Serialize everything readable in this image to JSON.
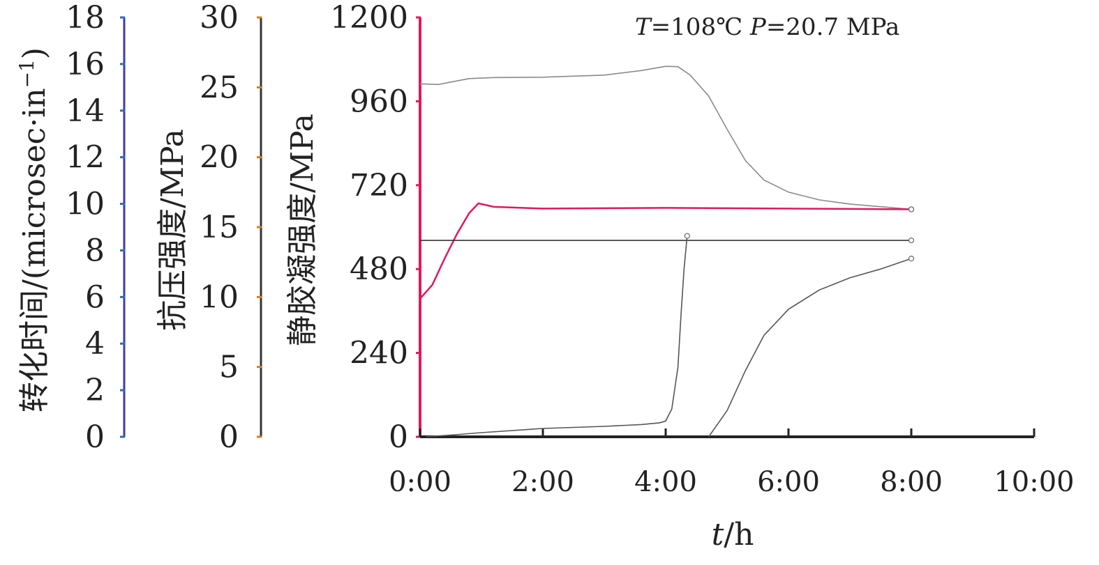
{
  "chart_data": {
    "type": "line",
    "annotation": "T=108℃ P=20.7 MPa",
    "annotation_parts": {
      "t_var": "T",
      "t_value": "=108℃ ",
      "p_var": "P",
      "p_value": "=20.7 MPa"
    },
    "xlabel": "t/h",
    "xlabel_parts": {
      "var": "t",
      "unit": "/h"
    },
    "x_unit": "hours",
    "x_range": [
      0,
      10
    ],
    "x_ticks": [
      "0:00",
      "2:00",
      "4:00",
      "6:00",
      "8:00",
      "10:00"
    ],
    "y_axes": [
      {
        "id": "transit_time",
        "label": "转化时间/(microsec·in⁻¹)",
        "label_parts": {
          "main": "转化时间/(microsec·in",
          "sup": "−1",
          "close": ")"
        },
        "range": [
          0,
          18
        ],
        "ticks": [
          "0",
          "2",
          "4",
          "6",
          "8",
          "10",
          "12",
          "14",
          "16",
          "18"
        ],
        "color": "#3b3fa8",
        "tick_color": "#2a6db5"
      },
      {
        "id": "compressive_strength",
        "label": "抗压强度/MPa",
        "range": [
          0,
          30
        ],
        "ticks": [
          "0",
          "5",
          "10",
          "15",
          "20",
          "25",
          "30"
        ],
        "color": "#333333",
        "tick_color": "#e07b18"
      },
      {
        "id": "sgs",
        "label": "静胶凝强度/MPa",
        "range": [
          0,
          1200
        ],
        "ticks": [
          "0",
          "240",
          "480",
          "720",
          "960",
          "1200"
        ],
        "color": "#e0185c",
        "tick_color": "#e0185c"
      }
    ],
    "series": [
      {
        "axis": "sgs",
        "color": "#8a8a8a",
        "marker_end": true,
        "points": [
          [
            0,
            1010
          ],
          [
            0.3,
            1008
          ],
          [
            0.5,
            1015
          ],
          [
            0.8,
            1025
          ],
          [
            1.2,
            1028
          ],
          [
            2,
            1029
          ],
          [
            3,
            1035
          ],
          [
            3.6,
            1048
          ],
          [
            4.0,
            1060
          ],
          [
            4.2,
            1059
          ],
          [
            4.4,
            1035
          ],
          [
            4.7,
            975
          ],
          [
            5.0,
            880
          ],
          [
            5.3,
            790
          ],
          [
            5.6,
            735
          ],
          [
            6.0,
            700
          ],
          [
            6.5,
            678
          ],
          [
            7.0,
            666
          ],
          [
            8.0,
            651
          ]
        ]
      },
      {
        "axis": "sgs",
        "color": "#e0185c",
        "marker_end": true,
        "points": [
          [
            0,
            395
          ],
          [
            0.2,
            435
          ],
          [
            0.4,
            510
          ],
          [
            0.6,
            580
          ],
          [
            0.8,
            640
          ],
          [
            0.95,
            668
          ],
          [
            1.2,
            658
          ],
          [
            2,
            653
          ],
          [
            3,
            654
          ],
          [
            4,
            655
          ],
          [
            5,
            654
          ],
          [
            6,
            653
          ],
          [
            7,
            652
          ],
          [
            8,
            651
          ]
        ]
      },
      {
        "axis": "sgs",
        "color": "#333333",
        "marker_end": true,
        "points": [
          [
            0,
            562
          ],
          [
            8,
            562
          ]
        ]
      },
      {
        "axis": "sgs",
        "color": "#555555",
        "marker_end": true,
        "points": [
          [
            0.1,
            0
          ],
          [
            0.5,
            5
          ],
          [
            1.0,
            12
          ],
          [
            2.0,
            24
          ],
          [
            3.0,
            30
          ],
          [
            3.6,
            35
          ],
          [
            3.9,
            40
          ],
          [
            4.0,
            45
          ],
          [
            4.1,
            80
          ],
          [
            4.2,
            200
          ],
          [
            4.25,
            350
          ],
          [
            4.3,
            482
          ],
          [
            4.35,
            575
          ]
        ]
      },
      {
        "axis": "sgs",
        "color": "#555555",
        "marker_end": true,
        "points": [
          [
            4.7,
            0
          ],
          [
            5.0,
            75
          ],
          [
            5.3,
            190
          ],
          [
            5.6,
            290
          ],
          [
            6.0,
            365
          ],
          [
            6.5,
            420
          ],
          [
            7.0,
            455
          ],
          [
            7.5,
            480
          ],
          [
            8.0,
            510
          ]
        ]
      }
    ],
    "grid": false,
    "legend": "none"
  }
}
